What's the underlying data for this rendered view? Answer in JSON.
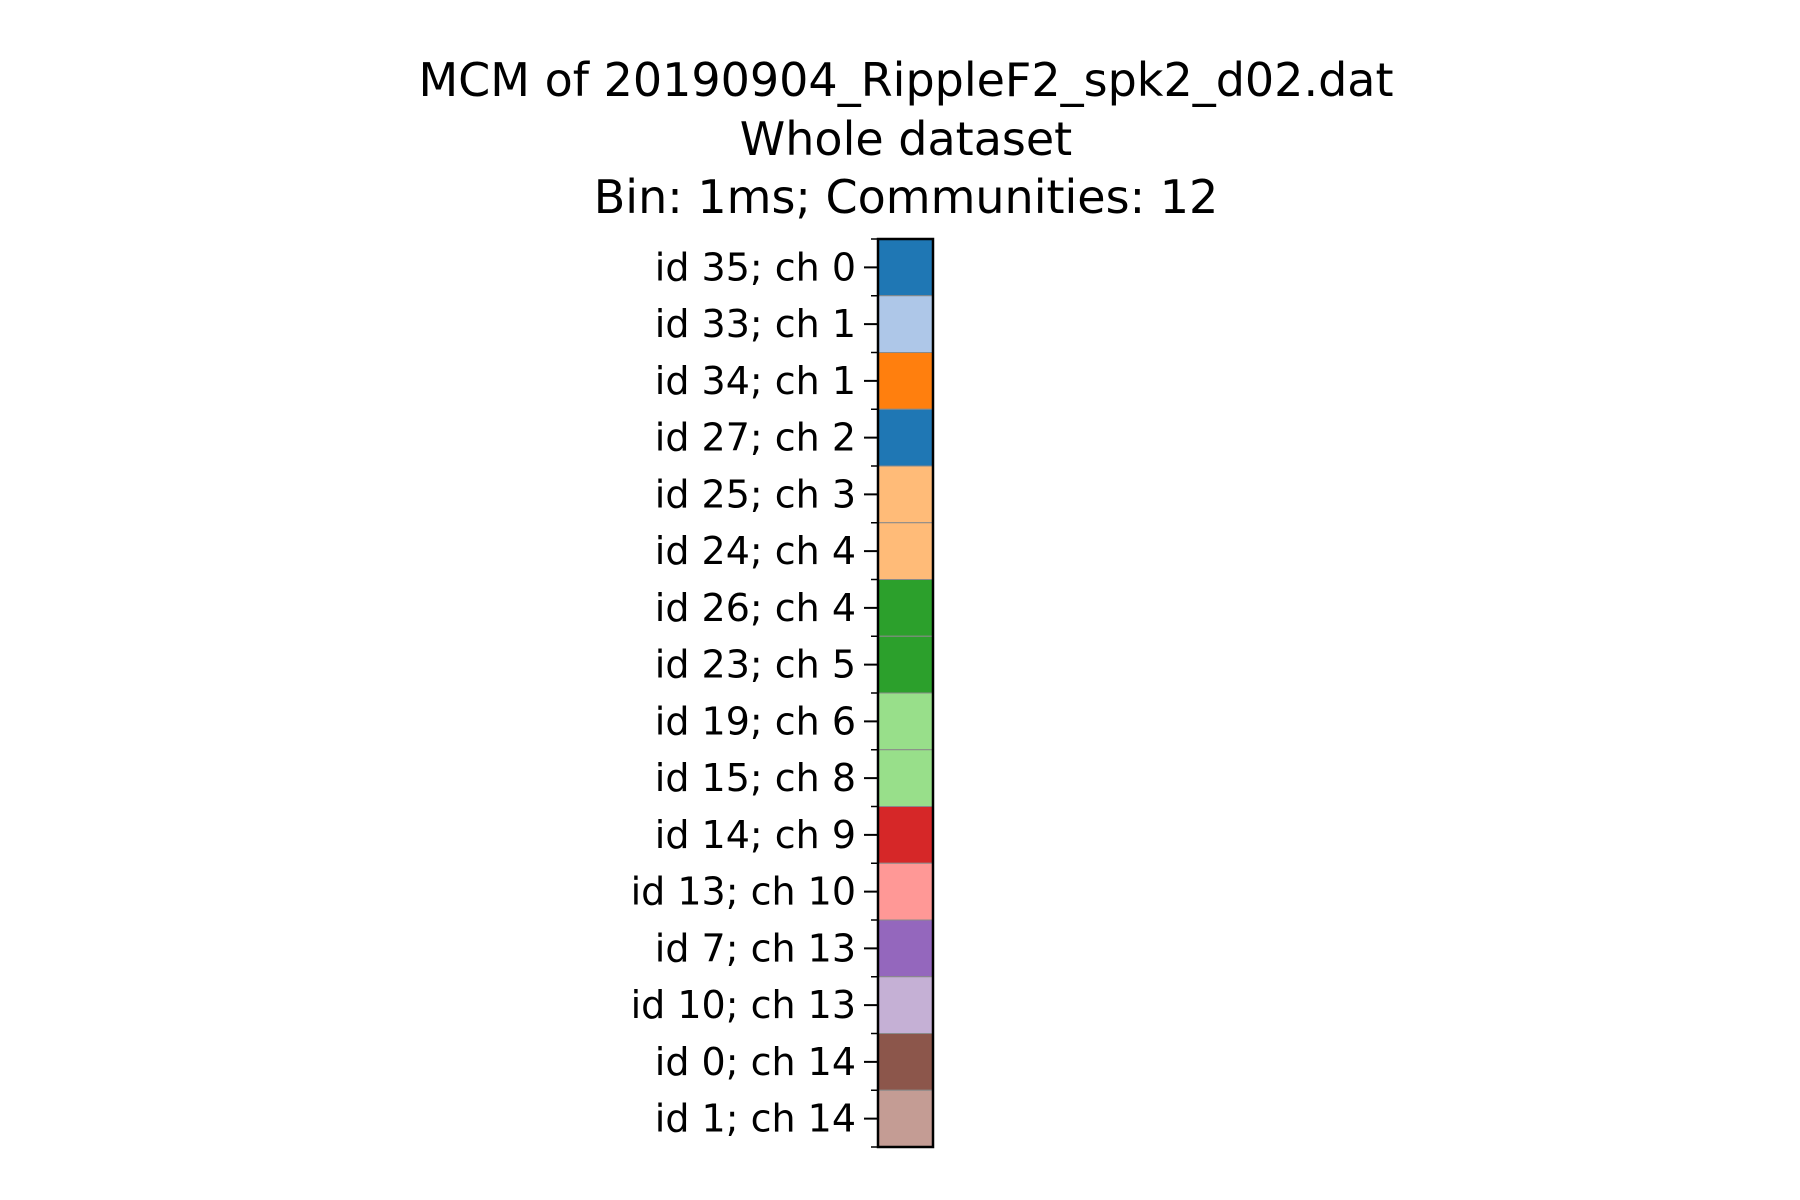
{
  "chart_data": {
    "type": "heatmap",
    "title": [
      "MCM of 20190904_RippleF2_spk2_d02.dat",
      "Whole dataset",
      "Bin: 1ms; Communities: 12"
    ],
    "xlabel": "",
    "ylabel": "",
    "rows": [
      {
        "label": "id 35; ch 0",
        "color": "#1f77b4"
      },
      {
        "label": "id 33; ch 1",
        "color": "#aec7e8"
      },
      {
        "label": "id 34; ch 1",
        "color": "#ff7f0e"
      },
      {
        "label": "id 27; ch 2",
        "color": "#1f77b4"
      },
      {
        "label": "id 25; ch 3",
        "color": "#ffbb78"
      },
      {
        "label": "id 24; ch 4",
        "color": "#ffbb78"
      },
      {
        "label": "id 26; ch 4",
        "color": "#2ca02c"
      },
      {
        "label": "id 23; ch 5",
        "color": "#2ca02c"
      },
      {
        "label": "id 19; ch 6",
        "color": "#98df8a"
      },
      {
        "label": "id 15; ch 8",
        "color": "#98df8a"
      },
      {
        "label": "id 14; ch 9",
        "color": "#d62728"
      },
      {
        "label": "id 13; ch 10",
        "color": "#ff9896"
      },
      {
        "label": "id 7; ch 13",
        "color": "#9467bd"
      },
      {
        "label": "id 10; ch 13",
        "color": "#c5b0d5"
      },
      {
        "label": "id 0; ch 14",
        "color": "#8c564b"
      },
      {
        "label": "id 1; ch 14",
        "color": "#c49c94"
      }
    ],
    "grid": false,
    "legend": "none"
  }
}
